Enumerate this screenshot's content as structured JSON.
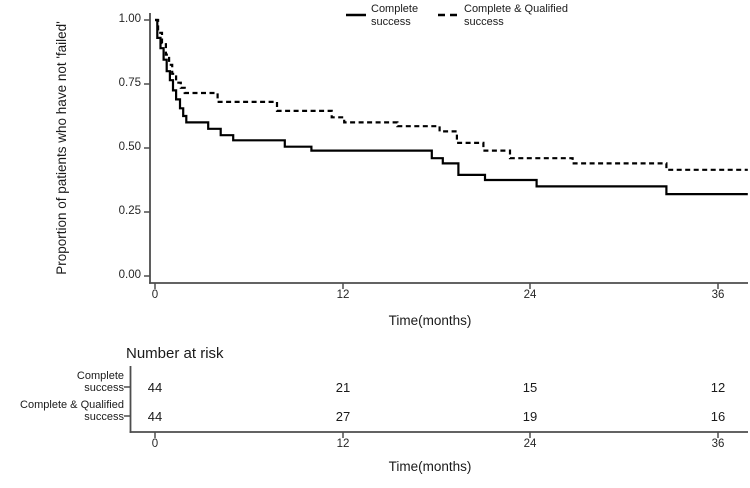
{
  "figure": {
    "background": "#ffffff",
    "axis_color": "#4d4d4d",
    "curve_color": "#000000",
    "text_color": "#262626"
  },
  "legend": {
    "items": [
      {
        "line1": "Complete",
        "line2": "success",
        "style": "solid"
      },
      {
        "line1": "Complete & Qualified",
        "line2": "success",
        "style": "dashed"
      }
    ]
  },
  "main_plot": {
    "ylabel": "Proportion of patients who have not 'failed'",
    "xlabel": "Time(months)",
    "yticks": [
      "1.00",
      "0.75",
      "0.50",
      "0.25",
      "0.00"
    ],
    "xticks": [
      "0",
      "12",
      "24",
      "36"
    ]
  },
  "risk_table": {
    "title": "Number at risk",
    "rows": [
      {
        "line1": "Complete",
        "line2": "success",
        "values": [
          "44",
          "21",
          "15",
          "12"
        ]
      },
      {
        "line1": "Complete & Qualified",
        "line2": "success",
        "values": [
          "44",
          "27",
          "19",
          "16"
        ]
      }
    ],
    "xticks": [
      "0",
      "12",
      "24",
      "36"
    ],
    "xlabel": "Time(months)"
  },
  "chart_data": {
    "type": "line",
    "subtype": "kaplan-meier-step",
    "title": "",
    "xlabel": "Time(months)",
    "ylabel": "Proportion of patients who have not 'failed'",
    "xlim": [
      0,
      38
    ],
    "ylim": [
      0,
      1.0
    ],
    "xticks": [
      0,
      12,
      24,
      36
    ],
    "yticks": [
      0.0,
      0.25,
      0.5,
      0.75,
      1.0
    ],
    "grid": false,
    "legend_position": "top-center",
    "series": [
      {
        "name": "Complete success",
        "line_style": "solid",
        "end_time": 37.9,
        "steps": [
          [
            0,
            1.0
          ],
          [
            0.15,
            0.93
          ],
          [
            0.35,
            0.89
          ],
          [
            0.55,
            0.845
          ],
          [
            0.75,
            0.8
          ],
          [
            0.95,
            0.765
          ],
          [
            1.15,
            0.725
          ],
          [
            1.35,
            0.69
          ],
          [
            1.6,
            0.655
          ],
          [
            1.8,
            0.625
          ],
          [
            2.0,
            0.6
          ],
          [
            3.4,
            0.575
          ],
          [
            4.2,
            0.55
          ],
          [
            5.0,
            0.53
          ],
          [
            8.3,
            0.505
          ],
          [
            10.0,
            0.49
          ],
          [
            17.7,
            0.46
          ],
          [
            18.4,
            0.44
          ],
          [
            19.4,
            0.395
          ],
          [
            21.1,
            0.375
          ],
          [
            24.4,
            0.35
          ],
          [
            32.7,
            0.32
          ]
        ]
      },
      {
        "name": "Complete & Qualified success",
        "line_style": "dashed",
        "end_time": 37.9,
        "steps": [
          [
            0,
            1.0
          ],
          [
            0.2,
            0.95
          ],
          [
            0.45,
            0.91
          ],
          [
            0.7,
            0.865
          ],
          [
            0.9,
            0.825
          ],
          [
            1.1,
            0.79
          ],
          [
            1.35,
            0.755
          ],
          [
            1.65,
            0.735
          ],
          [
            1.9,
            0.715
          ],
          [
            4.0,
            0.68
          ],
          [
            7.8,
            0.645
          ],
          [
            11.3,
            0.62
          ],
          [
            12.1,
            0.6
          ],
          [
            15.5,
            0.585
          ],
          [
            18.2,
            0.565
          ],
          [
            19.3,
            0.52
          ],
          [
            21.0,
            0.49
          ],
          [
            22.7,
            0.46
          ],
          [
            26.7,
            0.44
          ],
          [
            32.7,
            0.415
          ]
        ]
      }
    ],
    "number_at_risk": {
      "times": [
        0,
        12,
        24,
        36
      ],
      "groups": [
        {
          "name": "Complete success",
          "counts": [
            44,
            21,
            15,
            12
          ]
        },
        {
          "name": "Complete & Qualified success",
          "counts": [
            44,
            27,
            19,
            16
          ]
        }
      ]
    }
  }
}
